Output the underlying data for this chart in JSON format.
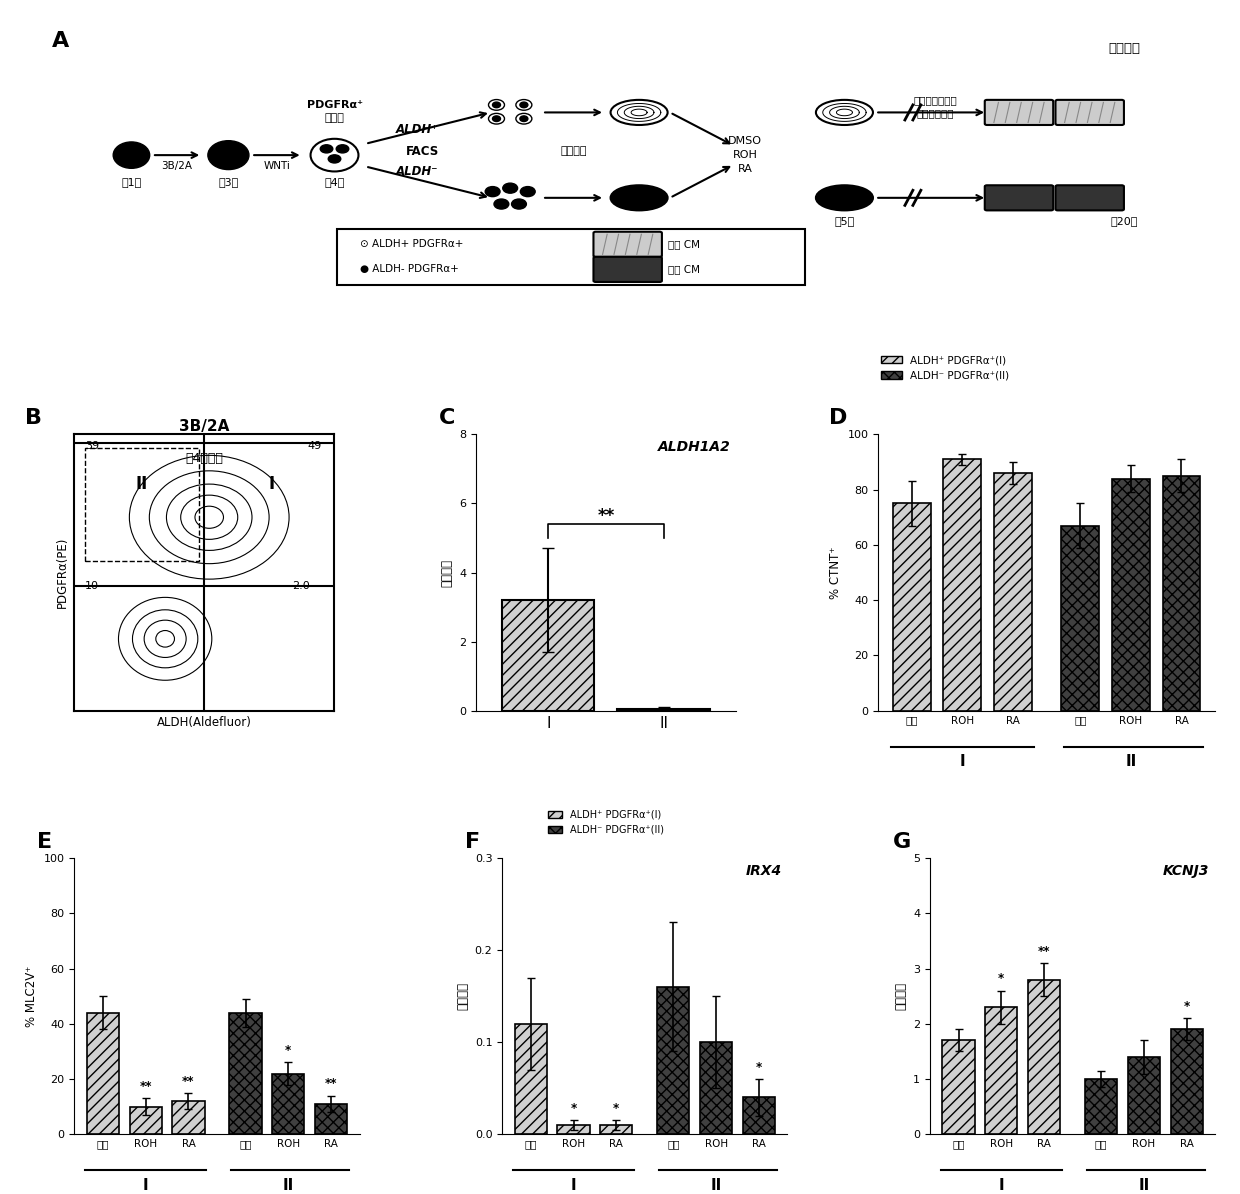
{
  "panel_C": {
    "title": "ALDH1A2",
    "ylabel": "相对表达",
    "categories": [
      "I",
      "II"
    ],
    "values": [
      3.2,
      0.05
    ],
    "errors": [
      1.5,
      0.05
    ],
    "ylim": [
      0,
      8
    ],
    "yticks": [
      0,
      2,
      4,
      6,
      8
    ],
    "legend": [
      "ALDH⁺ PDGFRα⁺(I)",
      "ALDH⁻ PDGFRα⁺(II)"
    ]
  },
  "panel_D": {
    "ylabel": "% CTNT⁺",
    "values_I_light": [
      75,
      91,
      86
    ],
    "errors_I_light": [
      8,
      2,
      4
    ],
    "values_II_dark": [
      67,
      84,
      85
    ],
    "errors_II_dark": [
      8,
      5,
      6
    ],
    "ylim": [
      0,
      100
    ],
    "yticks": [
      0,
      20,
      40,
      60,
      80,
      100
    ]
  },
  "panel_E": {
    "ylabel": "% MLC2V⁺",
    "values_I_light": [
      44,
      10,
      12
    ],
    "errors_I_light": [
      6,
      3,
      3
    ],
    "values_II_dark": [
      44,
      22,
      11
    ],
    "errors_II_dark": [
      5,
      4,
      3
    ],
    "ylim": [
      0,
      100
    ],
    "yticks": [
      0,
      20,
      40,
      60,
      80,
      100
    ],
    "sig_I": [
      "",
      "**",
      "**"
    ],
    "sig_II": [
      "",
      "*",
      "**"
    ]
  },
  "panel_F": {
    "title": "IRX4",
    "ylabel": "相对表达",
    "values_I_light": [
      0.12,
      0.01,
      0.01
    ],
    "errors_I_light": [
      0.05,
      0.005,
      0.005
    ],
    "values_II_dark": [
      0.16,
      0.1,
      0.04
    ],
    "errors_II_dark": [
      0.07,
      0.05,
      0.02
    ],
    "ylim": [
      0,
      0.3
    ],
    "yticks": [
      0.0,
      0.1,
      0.2,
      0.3
    ],
    "sig_I": [
      "",
      "*",
      "*"
    ],
    "sig_II": [
      "",
      "",
      "*"
    ]
  },
  "panel_G": {
    "title": "KCNJ3",
    "ylabel": "相对表达",
    "values_I_light": [
      1.7,
      2.3,
      2.8
    ],
    "errors_I_light": [
      0.2,
      0.3,
      0.3
    ],
    "values_II_dark": [
      1.0,
      1.4,
      1.9
    ],
    "errors_II_dark": [
      0.15,
      0.3,
      0.2
    ],
    "ylim": [
      0,
      5
    ],
    "yticks": [
      0,
      1,
      2,
      3,
      4,
      5
    ],
    "sig_I": [
      "",
      "*",
      "**"
    ],
    "sig_II": [
      "",
      "",
      "*"
    ]
  },
  "x_positions": [
    0.5,
    1.1,
    1.7,
    2.5,
    3.1,
    3.7
  ],
  "cat_labels": [
    "对照",
    "ROH",
    "RA",
    "对照",
    "ROH",
    "RA"
  ],
  "group_I_label": "I",
  "group_II_label": "II",
  "light_color": "#d0d0d0",
  "dark_color": "#404040",
  "light_hatch": "///",
  "dark_hatch": "xxx",
  "legend_label_I": "ALDH⁺ PDGFRα⁺(I)",
  "legend_label_II": "ALDH⁻ PDGFRα⁺(II)"
}
